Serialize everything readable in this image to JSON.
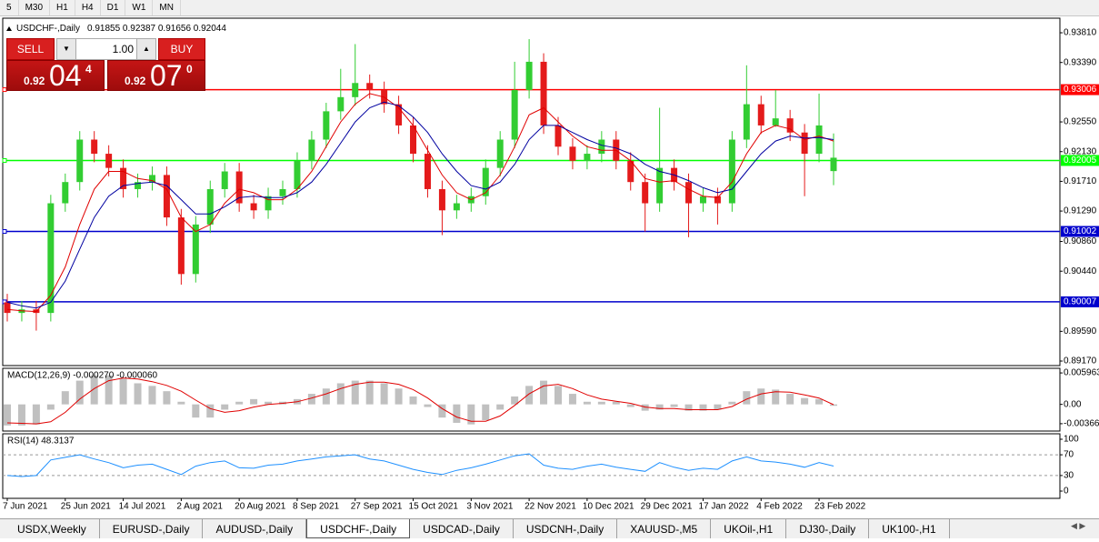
{
  "toolbar": [
    "5",
    "M30",
    "H1",
    "H4",
    "D1",
    "W1",
    "MN"
  ],
  "trade_panel": {
    "sell": "SELL",
    "lot": "1.00",
    "buy": "BUY",
    "sell_price": {
      "big_figure": "0.92",
      "pips": "04",
      "fraction": "4"
    },
    "buy_price": {
      "big_figure": "0.92",
      "pips": "07",
      "fraction": "0"
    }
  },
  "chart_data": [
    {
      "type": "candlestick",
      "title": "USDCHF-,Daily",
      "quote": "0.91855 0.92387 0.91656 0.92044",
      "categories": [
        "7 Jun 2021",
        null,
        null,
        null,
        "25 Jun 2021",
        null,
        null,
        null,
        "14 Jul 2021",
        null,
        null,
        null,
        "2 Aug 2021",
        null,
        null,
        null,
        "20 Aug 2021",
        null,
        null,
        null,
        "8 Sep 2021",
        null,
        null,
        null,
        "27 Sep 2021",
        null,
        null,
        null,
        "15 Oct 2021",
        null,
        null,
        null,
        "3 Nov 2021",
        null,
        null,
        null,
        "22 Nov 2021",
        null,
        null,
        null,
        "10 Dec 2021",
        null,
        null,
        null,
        "29 Dec 2021",
        null,
        null,
        null,
        "17 Jan 2022",
        null,
        null,
        null,
        "4 Feb 2022",
        null,
        null,
        null,
        "23 Feb 2022",
        null
      ],
      "open": [
        0.9,
        0.8985,
        0.899,
        0.8985,
        0.914,
        0.917,
        0.923,
        0.921,
        0.919,
        0.916,
        0.917,
        0.918,
        0.912,
        0.904,
        0.911,
        0.916,
        0.9185,
        0.914,
        0.913,
        0.915,
        0.916,
        0.92,
        0.923,
        0.927,
        0.929,
        0.931,
        0.93,
        0.928,
        0.925,
        0.921,
        0.916,
        0.913,
        0.914,
        0.915,
        0.919,
        0.923,
        0.93,
        0.934,
        0.925,
        0.922,
        0.92,
        0.921,
        0.923,
        0.92,
        0.917,
        0.914,
        0.919,
        0.917,
        0.914,
        0.915,
        0.914,
        0.923,
        0.928,
        0.925,
        0.926,
        0.924,
        0.921,
        0.91855
      ],
      "high": [
        0.9012,
        0.9002,
        0.9002,
        0.9152,
        0.9182,
        0.9242,
        0.9242,
        0.9222,
        0.9202,
        0.9182,
        0.9192,
        0.9192,
        0.9132,
        0.9122,
        0.9172,
        0.9197,
        0.9197,
        0.9152,
        0.9162,
        0.9172,
        0.9212,
        0.9242,
        0.9282,
        0.933,
        0.9365,
        0.9322,
        0.9312,
        0.9292,
        0.9262,
        0.9222,
        0.9172,
        0.9152,
        0.9162,
        0.9202,
        0.9242,
        0.934,
        0.9372,
        0.9352,
        0.9262,
        0.9232,
        0.9222,
        0.9242,
        0.9242,
        0.9212,
        0.9182,
        0.9275,
        0.9202,
        0.9182,
        0.9162,
        0.9162,
        0.9242,
        0.9335,
        0.9292,
        0.93,
        0.9272,
        0.9252,
        0.9295,
        0.92387
      ],
      "low": [
        0.8973,
        0.8973,
        0.896,
        0.8973,
        0.9128,
        0.9158,
        0.9198,
        0.9178,
        0.9148,
        0.9148,
        0.9158,
        0.9108,
        0.9025,
        0.9028,
        0.9098,
        0.9148,
        0.9128,
        0.9118,
        0.9118,
        0.9138,
        0.9148,
        0.9188,
        0.9218,
        0.9258,
        0.9278,
        0.9288,
        0.9268,
        0.9238,
        0.9198,
        0.9148,
        0.9095,
        0.9118,
        0.9128,
        0.9138,
        0.9178,
        0.9218,
        0.9288,
        0.9238,
        0.9208,
        0.9188,
        0.9188,
        0.9198,
        0.9188,
        0.9158,
        0.91,
        0.9128,
        0.9158,
        0.9092,
        0.9128,
        0.911,
        0.9128,
        0.9218,
        0.9238,
        0.9248,
        0.9228,
        0.915,
        0.9198,
        0.91656
      ],
      "close": [
        0.8985,
        0.899,
        0.8985,
        0.914,
        0.917,
        0.923,
        0.921,
        0.919,
        0.916,
        0.917,
        0.918,
        0.912,
        0.904,
        0.911,
        0.916,
        0.9185,
        0.914,
        0.913,
        0.915,
        0.916,
        0.92,
        0.923,
        0.927,
        0.929,
        0.931,
        0.93,
        0.928,
        0.925,
        0.921,
        0.916,
        0.913,
        0.914,
        0.915,
        0.919,
        0.923,
        0.93,
        0.934,
        0.925,
        0.922,
        0.92,
        0.921,
        0.923,
        0.92,
        0.917,
        0.914,
        0.919,
        0.917,
        0.914,
        0.915,
        0.914,
        0.923,
        0.928,
        0.925,
        0.926,
        0.924,
        0.921,
        0.925,
        0.92044
      ],
      "up_color": "#32cd32",
      "down_color": "#e41b1b",
      "series": [
        {
          "color": "#e00000",
          "values": [
            0.899,
            0.8988,
            0.8987,
            0.901,
            0.905,
            0.911,
            0.916,
            0.9185,
            0.9185,
            0.9175,
            0.9172,
            0.916,
            0.912,
            0.91,
            0.911,
            0.914,
            0.916,
            0.9155,
            0.9145,
            0.9145,
            0.916,
            0.9185,
            0.922,
            0.9255,
            0.928,
            0.9295,
            0.929,
            0.9275,
            0.925,
            0.9215,
            0.918,
            0.9155,
            0.9145,
            0.9155,
            0.918,
            0.922,
            0.9265,
            0.9275,
            0.9255,
            0.9235,
            0.922,
            0.9215,
            0.9215,
            0.92,
            0.9175,
            0.917,
            0.9172,
            0.916,
            0.915,
            0.9148,
            0.917,
            0.921,
            0.924,
            0.925,
            0.9245,
            0.923,
            0.9235,
            0.9228
          ]
        },
        {
          "color": "#0000a0",
          "values": [
            0.9,
            0.8995,
            0.8992,
            0.9,
            0.903,
            0.9075,
            0.912,
            0.915,
            0.9165,
            0.9168,
            0.917,
            0.9165,
            0.9145,
            0.9125,
            0.9125,
            0.9135,
            0.9148,
            0.915,
            0.9148,
            0.9148,
            0.9155,
            0.917,
            0.9195,
            0.9225,
            0.9255,
            0.9275,
            0.9283,
            0.9278,
            0.9262,
            0.924,
            0.921,
            0.9185,
            0.9165,
            0.916,
            0.917,
            0.9195,
            0.923,
            0.925,
            0.925,
            0.924,
            0.923,
            0.9222,
            0.9218,
            0.921,
            0.9195,
            0.9185,
            0.918,
            0.9172,
            0.9162,
            0.9155,
            0.916,
            0.9185,
            0.921,
            0.9228,
            0.9235,
            0.9232,
            0.9233,
            0.923
          ]
        }
      ],
      "levels": [
        {
          "value": 0.93006,
          "color": "#ff0000"
        },
        {
          "value": 0.92005,
          "color": "#00ff00"
        },
        {
          "value": 0.91002,
          "color": "#0000cd"
        },
        {
          "value": 0.90007,
          "color": "#0000cd"
        }
      ],
      "ylim": [
        0.89106,
        0.94016
      ],
      "yticks": [
        {
          "value": 0.9381,
          "label": "0.93810"
        },
        {
          "value": 0.9339,
          "label": "0.93390"
        },
        {
          "value": 0.9255,
          "label": "0.92550"
        },
        {
          "value": 0.9213,
          "label": "0.92130"
        },
        {
          "value": 0.9171,
          "label": "0.91710"
        },
        {
          "value": 0.9129,
          "label": "0.91290"
        },
        {
          "value": 0.9086,
          "label": "0.90860"
        },
        {
          "value": 0.9044,
          "label": "0.90440"
        },
        {
          "value": 0.8959,
          "label": "0.89590"
        },
        {
          "value": 0.8917,
          "label": "0.89170"
        }
      ]
    },
    {
      "type": "macd",
      "title": "MACD(12,26,9) -0.000270 -0.000060",
      "bar_color": "#c0c0c0",
      "values": [
        -0.004,
        -0.004,
        -0.0038,
        -0.001,
        0.0025,
        0.0045,
        0.0055,
        0.0055,
        0.0048,
        0.004,
        0.0035,
        0.0025,
        0.0005,
        -0.0025,
        -0.0025,
        -0.001,
        0.0005,
        0.001,
        0.0005,
        0.0005,
        0.001,
        0.002,
        0.003,
        0.004,
        0.0045,
        0.0045,
        0.004,
        0.003,
        0.0015,
        -0.0005,
        -0.0025,
        -0.0035,
        -0.0038,
        -0.003,
        -0.001,
        0.0015,
        0.0035,
        0.0045,
        0.0035,
        0.002,
        0.0005,
        0.0005,
        0.0005,
        -0.0005,
        -0.0012,
        -0.001,
        -0.0005,
        -0.0012,
        -0.0012,
        -0.001,
        0.0005,
        0.0025,
        0.003,
        0.0028,
        0.002,
        0.0012,
        0.001,
        -0.00027
      ],
      "series": [
        {
          "color": "#e00000",
          "values": [
            -0.0035,
            -0.0036,
            -0.0037,
            -0.0033,
            -0.0015,
            0.001,
            0.003,
            0.0045,
            0.005,
            0.0048,
            0.0043,
            0.0036,
            0.0025,
            0.0008,
            -0.0008,
            -0.0015,
            -0.0012,
            -0.0005,
            0.0,
            0.0002,
            0.0005,
            0.0012,
            0.002,
            0.003,
            0.0038,
            0.0042,
            0.0042,
            0.0038,
            0.0028,
            0.0012,
            -0.0008,
            -0.0024,
            -0.0032,
            -0.0032,
            -0.0022,
            -0.0002,
            0.002,
            0.0035,
            0.0038,
            0.003,
            0.0018,
            0.001,
            0.0006,
            0.0002,
            -0.0005,
            -0.0008,
            -0.0008,
            -0.001,
            -0.001,
            -0.001,
            -0.0004,
            0.001,
            0.002,
            0.0024,
            0.0023,
            0.0018,
            0.0012,
            -6e-05
          ]
        }
      ],
      "ylim": [
        -0.00506,
        0.00684
      ],
      "yticks": [
        0.005963,
        {
          "value": 0,
          "label": "0.00"
        },
        -0.003664
      ]
    },
    {
      "type": "line",
      "title": "RSI(14) 48.3137",
      "series": [
        {
          "color": "#1e90ff",
          "values": [
            30,
            28,
            30,
            60,
            65,
            70,
            62,
            55,
            45,
            50,
            52,
            42,
            32,
            48,
            55,
            58,
            45,
            44,
            50,
            52,
            58,
            62,
            66,
            68,
            70,
            62,
            58,
            50,
            42,
            36,
            32,
            40,
            45,
            52,
            60,
            68,
            72,
            50,
            44,
            42,
            48,
            52,
            46,
            42,
            38,
            55,
            46,
            40,
            44,
            42,
            58,
            66,
            58,
            56,
            52,
            46,
            55,
            48.3137
          ]
        }
      ],
      "ylim": [
        -14,
        110.5
      ],
      "yticks": [
        100,
        70,
        30,
        0
      ],
      "grid": true
    }
  ],
  "tabs": [
    "USDX,Weekly",
    "EURUSD-,Daily",
    "AUDUSD-,Daily",
    "USDCHF-,Daily",
    "USDCAD-,Daily",
    "USDCNH-,Daily",
    "XAUUSD-,M5",
    "UKOil-,H1",
    "DJ30-,Daily",
    "UK100-,H1"
  ],
  "active_tab": 3
}
